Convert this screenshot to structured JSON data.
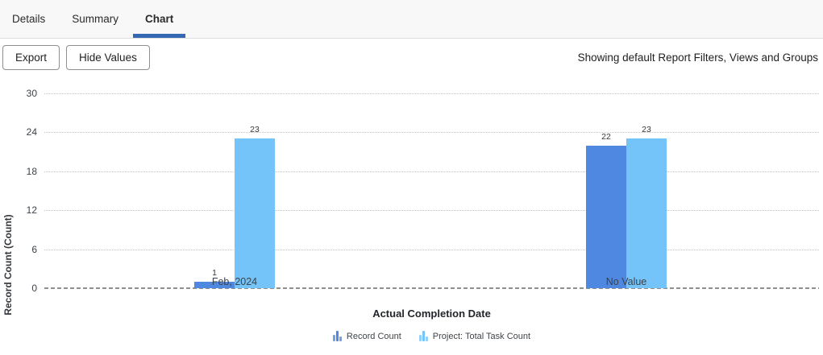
{
  "tabs": {
    "items": [
      {
        "label": "Details",
        "active": false
      },
      {
        "label": "Summary",
        "active": false
      },
      {
        "label": "Chart",
        "active": true
      }
    ]
  },
  "toolbar": {
    "export_label": "Export",
    "hide_values_label": "Hide Values",
    "status_text": "Showing default Report Filters, Views and Groups"
  },
  "colors": {
    "series1": "#4f88e0",
    "series2": "#74c4f9",
    "tab_underline": "#3468b4",
    "gridline": "#c3c3c3",
    "baseline": "#8f8f8f"
  },
  "chart_data": {
    "type": "bar",
    "categories": [
      "Feb, 2024",
      "No Value"
    ],
    "series": [
      {
        "name": "Record Count",
        "color": "#4f88e0",
        "values": [
          1,
          22
        ]
      },
      {
        "name": "Project: Total Task Count",
        "color": "#74c4f9",
        "values": [
          23,
          23
        ]
      }
    ],
    "title": "",
    "xlabel": "Actual Completion Date",
    "ylabel": "Record Count (Count)",
    "ylim": [
      0,
      30
    ],
    "yticks": [
      0,
      6,
      12,
      18,
      24,
      30
    ],
    "grid": true,
    "legend_position": "bottom",
    "value_labels_shown": true
  }
}
